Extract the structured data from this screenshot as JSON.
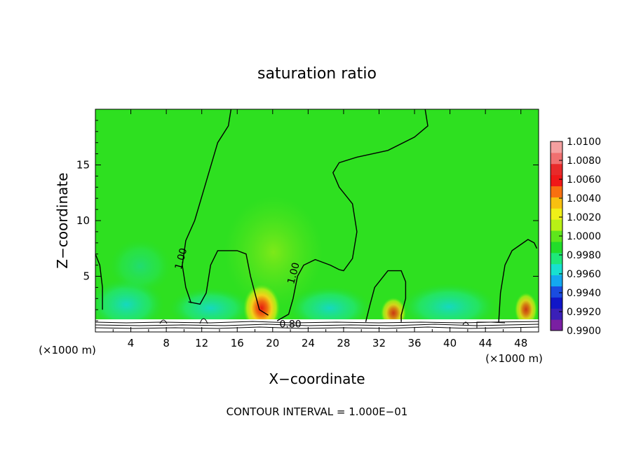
{
  "chart_data": {
    "type": "heatmap",
    "title": "saturation ratio",
    "xlabel": "X−coordinate",
    "ylabel": "Z−coordinate",
    "x_unit_left": "(×1000 m)",
    "x_unit_right": "(×1000 m)",
    "footer": "CONTOUR INTERVAL = 1.000E−01",
    "xlim": [
      0,
      50
    ],
    "ylim": [
      0,
      20
    ],
    "x_ticks": [
      4,
      8,
      12,
      16,
      20,
      24,
      28,
      32,
      36,
      40,
      44,
      48
    ],
    "x_tick_labels": [
      "4",
      "8",
      "12",
      "16",
      "20",
      "24",
      "28",
      "32",
      "36",
      "40",
      "44",
      "48"
    ],
    "y_ticks": [
      5,
      10,
      15
    ],
    "y_tick_labels": [
      "5",
      "10",
      "15"
    ],
    "colorbar": {
      "min": 0.99,
      "max": 1.01,
      "tick_labels": [
        "1.0100",
        "1.0080",
        "1.0060",
        "1.0040",
        "1.0020",
        "1.0000",
        "0.9980",
        "0.9960",
        "0.9940",
        "0.9920",
        "0.9900"
      ],
      "colors": [
        "#7a1fa2",
        "#3a1fb8",
        "#1016c8",
        "#1a4ce0",
        "#14a8f0",
        "#18e0d0",
        "#1ee87a",
        "#22dc2a",
        "#5ee61c",
        "#b8f016",
        "#f0f018",
        "#f8c010",
        "#f87010",
        "#f01818",
        "#e82a2a",
        "#f07070",
        "#f4a0a0"
      ]
    },
    "contour_labels": [
      "1.00",
      "1.00",
      "0.80"
    ],
    "contours": [
      {
        "level": 1.0,
        "points": [
          [
            10.8,
            2.6
          ],
          [
            10.2,
            4.0
          ],
          [
            9.8,
            6.0
          ],
          [
            10.2,
            8.2
          ],
          [
            11.2,
            10.0
          ],
          [
            12.5,
            13.5
          ],
          [
            13.8,
            17.0
          ],
          [
            15.0,
            18.5
          ],
          [
            15.3,
            20.0
          ]
        ]
      },
      {
        "level": 1.0,
        "points": [
          [
            20.5,
            1.0
          ],
          [
            21.8,
            1.6
          ],
          [
            22.3,
            3.0
          ],
          [
            22.8,
            5.0
          ],
          [
            23.5,
            6.0
          ],
          [
            24.8,
            6.5
          ],
          [
            26.5,
            6.0
          ],
          [
            27.5,
            5.6
          ],
          [
            28.0,
            5.5
          ],
          [
            29.0,
            6.6
          ],
          [
            29.5,
            9.0
          ],
          [
            29.0,
            11.5
          ],
          [
            27.5,
            13.0
          ],
          [
            26.8,
            14.3
          ],
          [
            27.5,
            15.2
          ],
          [
            29.5,
            15.7
          ],
          [
            33.0,
            16.3
          ],
          [
            36.0,
            17.5
          ],
          [
            37.5,
            18.5
          ],
          [
            37.2,
            20.0
          ]
        ]
      },
      {
        "level": 1.0,
        "points": [
          [
            10.5,
            2.7
          ],
          [
            11.8,
            2.5
          ],
          [
            12.5,
            3.5
          ],
          [
            13.0,
            6.0
          ],
          [
            13.8,
            7.3
          ],
          [
            16.0,
            7.3
          ],
          [
            17.0,
            7.0
          ],
          [
            17.5,
            5.0
          ],
          [
            18.0,
            3.5
          ],
          [
            18.5,
            2.0
          ],
          [
            19.5,
            1.5
          ]
        ]
      },
      {
        "level": 1.0,
        "points": [
          [
            30.5,
            0.9
          ],
          [
            31.0,
            2.5
          ],
          [
            31.5,
            4.0
          ],
          [
            33.0,
            5.5
          ],
          [
            34.5,
            5.5
          ],
          [
            35.0,
            4.5
          ],
          [
            35.0,
            3.0
          ],
          [
            34.5,
            1.5
          ],
          [
            34.5,
            0.9
          ]
        ]
      },
      {
        "level": 1.0,
        "points": [
          [
            45.5,
            0.9
          ],
          [
            45.7,
            3.5
          ],
          [
            46.2,
            6.0
          ],
          [
            47.0,
            7.3
          ],
          [
            48.8,
            8.3
          ],
          [
            49.5,
            8.0
          ],
          [
            49.8,
            7.5
          ]
        ]
      },
      {
        "level": 1.0,
        "points": [
          [
            0.0,
            7.0
          ],
          [
            0.5,
            6.0
          ],
          [
            0.8,
            4.0
          ],
          [
            0.8,
            2.0
          ]
        ]
      }
    ]
  }
}
